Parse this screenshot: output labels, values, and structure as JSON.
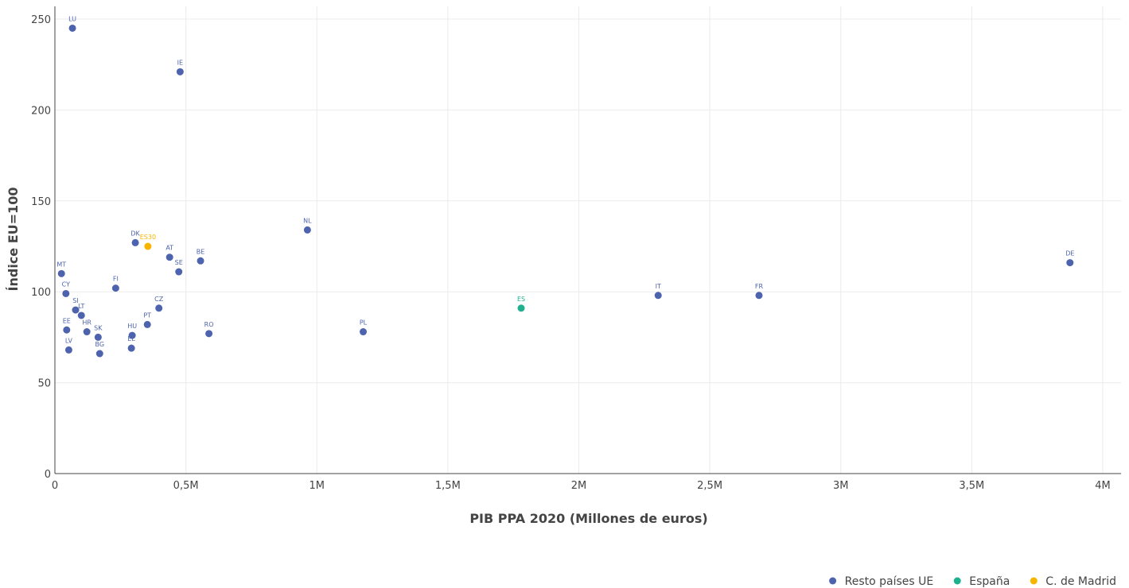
{
  "chart_data": {
    "type": "scatter",
    "title": "",
    "xlabel": "PIB PPA 2020 (Millones de euros)",
    "ylabel": "Índice EU=100",
    "xlim": [
      0,
      4070000
    ],
    "ylim": [
      0,
      257
    ],
    "x_ticks": [
      {
        "value": 0,
        "label": "0"
      },
      {
        "value": 500000,
        "label": "0,5M"
      },
      {
        "value": 1000000,
        "label": "1M"
      },
      {
        "value": 1500000,
        "label": "1,5M"
      },
      {
        "value": 2000000,
        "label": "2M"
      },
      {
        "value": 2500000,
        "label": "2,5M"
      },
      {
        "value": 3000000,
        "label": "3M"
      },
      {
        "value": 3500000,
        "label": "3,5M"
      },
      {
        "value": 4000000,
        "label": "4M"
      }
    ],
    "y_ticks": [
      {
        "value": 0,
        "label": "0"
      },
      {
        "value": 50,
        "label": "50"
      },
      {
        "value": 100,
        "label": "100"
      },
      {
        "value": 150,
        "label": "150"
      },
      {
        "value": 200,
        "label": "200"
      },
      {
        "value": 250,
        "label": "250"
      }
    ],
    "grid": true,
    "legend_position": "bottom-right",
    "series": [
      {
        "name": "Resto países UE",
        "color": "#4d63ad",
        "points": [
          {
            "label": "LU",
            "x": 67000,
            "y": 245
          },
          {
            "label": "IE",
            "x": 478000,
            "y": 221
          },
          {
            "label": "NL",
            "x": 964000,
            "y": 134
          },
          {
            "label": "DK",
            "x": 307000,
            "y": 127
          },
          {
            "label": "AT",
            "x": 438000,
            "y": 119
          },
          {
            "label": "BE",
            "x": 556000,
            "y": 117
          },
          {
            "label": "DE",
            "x": 3875000,
            "y": 116
          },
          {
            "label": "SE",
            "x": 473000,
            "y": 111
          },
          {
            "label": "MT",
            "x": 25000,
            "y": 110
          },
          {
            "label": "FI",
            "x": 232000,
            "y": 102
          },
          {
            "label": "CY",
            "x": 42000,
            "y": 99
          },
          {
            "label": "IT",
            "x": 2303000,
            "y": 98
          },
          {
            "label": "FR",
            "x": 2688000,
            "y": 98
          },
          {
            "label": "CZ",
            "x": 397000,
            "y": 91
          },
          {
            "label": "SI",
            "x": 79000,
            "y": 90
          },
          {
            "label": "LT",
            "x": 101000,
            "y": 87
          },
          {
            "label": "PT",
            "x": 353000,
            "y": 82
          },
          {
            "label": "EE",
            "x": 45000,
            "y": 79
          },
          {
            "label": "HR",
            "x": 122000,
            "y": 78
          },
          {
            "label": "PL",
            "x": 1177000,
            "y": 78
          },
          {
            "label": "RO",
            "x": 588000,
            "y": 77
          },
          {
            "label": "HU",
            "x": 295000,
            "y": 76
          },
          {
            "label": "SK",
            "x": 165000,
            "y": 75
          },
          {
            "label": "EL",
            "x": 292000,
            "y": 69
          },
          {
            "label": "LV",
            "x": 53000,
            "y": 68
          },
          {
            "label": "BG",
            "x": 171000,
            "y": 66
          }
        ]
      },
      {
        "name": "España",
        "color": "#1fb08f",
        "points": [
          {
            "label": "ES",
            "x": 1780000,
            "y": 91
          }
        ]
      },
      {
        "name": "C. de Madrid",
        "color": "#f7b500",
        "points": [
          {
            "label": "ES30",
            "x": 355000,
            "y": 125
          }
        ]
      }
    ]
  }
}
